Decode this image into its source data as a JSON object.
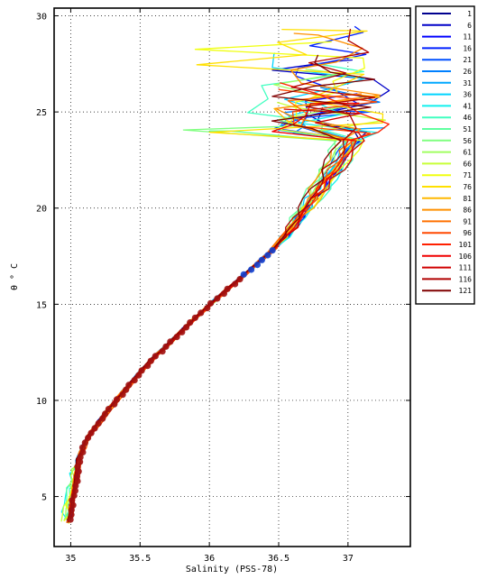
{
  "chart_data": {
    "type": "line",
    "title": "",
    "xlabel": "Salinity (PSS-78)",
    "ylabel": "θ ° C",
    "xlim": [
      34.88,
      37.45
    ],
    "ylim": [
      2.4,
      30.4
    ],
    "xticks": [
      35,
      35.5,
      36,
      36.5,
      37
    ],
    "xtick_labels": [
      "35",
      "35.5",
      "36",
      "36.5",
      "37"
    ],
    "yticks": [
      5,
      10,
      15,
      20,
      25,
      30
    ],
    "ytick_labels": [
      "5",
      "10",
      "15",
      "20",
      "25",
      "30"
    ],
    "grid": true,
    "grid_style": "dotted",
    "legend_placement": "outside-right-top",
    "colormap": "jet",
    "series_names": [
      "1",
      "6",
      "11",
      "16",
      "21",
      "26",
      "31",
      "36",
      "41",
      "46",
      "51",
      "56",
      "61",
      "66",
      "71",
      "76",
      "81",
      "86",
      "91",
      "96",
      "101",
      "106",
      "111",
      "116",
      "121"
    ],
    "series_colors": [
      "#00008f",
      "#0000c8",
      "#0000ff",
      "#0020ff",
      "#0050ff",
      "#0080ff",
      "#00a8ff",
      "#00d4ff",
      "#10f0ee",
      "#40ffc0",
      "#60ffa0",
      "#80ff80",
      "#a0ff60",
      "#c8ff38",
      "#f0ff10",
      "#ffe000",
      "#ffb800",
      "#ff9000",
      "#ff7000",
      "#ff4800",
      "#ff2000",
      "#f00000",
      "#d00000",
      "#b00000",
      "#800000"
    ],
    "base_profile": {
      "theta": [
        3.6,
        4.2,
        5.0,
        5.8,
        6.4,
        7.0,
        8.0,
        9.0,
        10.0,
        11.0,
        12.0,
        13.0,
        14.0,
        15.0,
        16.0,
        17.0,
        18.0,
        19.0,
        20.0,
        21.0,
        22.0,
        23.0,
        24.0
      ],
      "salinity": [
        34.99,
        35.0,
        35.02,
        35.04,
        35.05,
        35.06,
        35.12,
        35.22,
        35.33,
        35.45,
        35.57,
        35.72,
        35.86,
        36.01,
        36.17,
        36.33,
        36.49,
        36.58,
        36.66,
        36.74,
        36.82,
        36.9,
        36.96
      ]
    },
    "spread": {
      "min_theta_for_fan": 18,
      "surface_theta_range": [
        24,
        29.5
      ],
      "surface_salinity_range": [
        35.7,
        37.3
      ]
    }
  }
}
